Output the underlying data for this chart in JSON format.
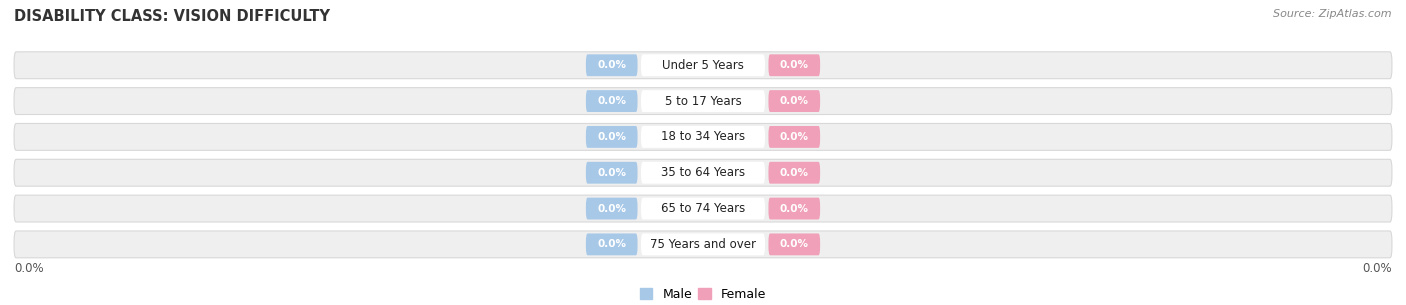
{
  "title": "DISABILITY CLASS: VISION DIFFICULTY",
  "source_text": "Source: ZipAtlas.com",
  "categories": [
    "Under 5 Years",
    "5 to 17 Years",
    "18 to 34 Years",
    "35 to 64 Years",
    "65 to 74 Years",
    "75 Years and over"
  ],
  "male_values": [
    0.0,
    0.0,
    0.0,
    0.0,
    0.0,
    0.0
  ],
  "female_values": [
    0.0,
    0.0,
    0.0,
    0.0,
    0.0,
    0.0
  ],
  "male_color": "#a8c8e8",
  "female_color": "#f0a0b8",
  "row_bg_color": "#e8e8e8",
  "label_bg_color": "#ffffff",
  "title_fontsize": 10.5,
  "source_fontsize": 8,
  "bar_label_fontsize": 7.5,
  "cat_label_fontsize": 8.5,
  "axis_label_color": "#555555",
  "x_left_label": "0.0%",
  "x_right_label": "0.0%",
  "figsize": [
    14.06,
    3.05
  ],
  "dpi": 100
}
